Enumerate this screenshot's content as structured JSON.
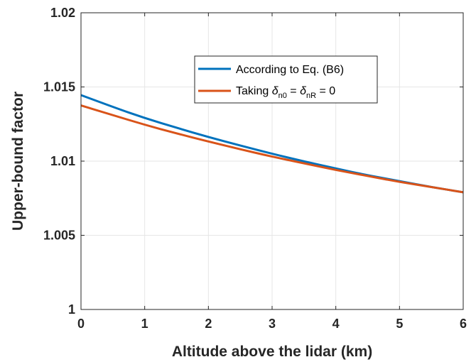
{
  "chart_data": {
    "type": "line",
    "xlabel": "Altitude above the lidar (km)",
    "ylabel": "Upper-bound factor",
    "xlim": [
      0,
      6
    ],
    "ylim": [
      1.0,
      1.02
    ],
    "xticks": [
      0,
      1,
      2,
      3,
      4,
      5,
      6
    ],
    "xtick_labels": [
      "0",
      "1",
      "2",
      "3",
      "4",
      "5",
      "6"
    ],
    "yticks": [
      1.0,
      1.005,
      1.01,
      1.015,
      1.02
    ],
    "ytick_labels": [
      "1",
      "1.005",
      "1.01",
      "1.015",
      "1.02"
    ],
    "grid": true,
    "legend_position": "top-right",
    "legend": {
      "series0_label": "According to Eq. (B6)",
      "series1_prefix": "Taking ",
      "delta": "δ",
      "sub_n0": "n0",
      "equals": " = ",
      "sub_nR": "nR",
      "suffix": " = 0"
    },
    "x": [
      0,
      0.5,
      1,
      1.5,
      2,
      2.5,
      3,
      3.5,
      4,
      4.5,
      5,
      5.5,
      6
    ],
    "series": [
      {
        "color": "#0072BD",
        "values": [
          1.01445,
          1.01365,
          1.0129,
          1.01225,
          1.01162,
          1.01105,
          1.0105,
          1.00998,
          1.0095,
          1.00905,
          1.00865,
          1.00825,
          1.0079
        ]
      },
      {
        "color": "#D95319",
        "values": [
          1.01375,
          1.0131,
          1.01245,
          1.01187,
          1.01132,
          1.0108,
          1.0103,
          1.00985,
          1.0094,
          1.009,
          1.0086,
          1.00825,
          1.0079
        ]
      }
    ]
  }
}
